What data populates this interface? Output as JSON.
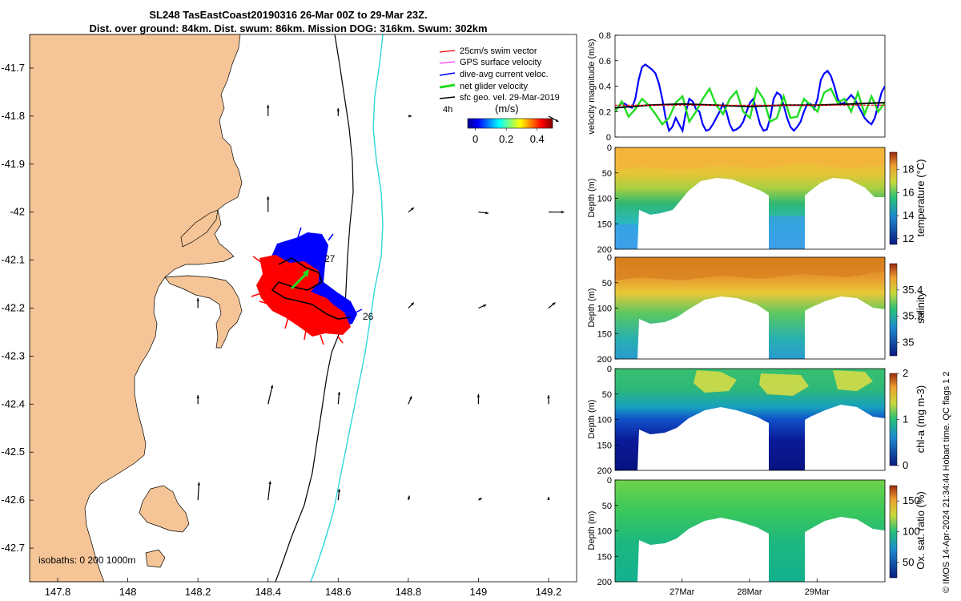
{
  "title": {
    "line1": "SL248 TasEastCoast20190316 26-Mar 00Z to 29-Mar 23Z.",
    "line2": "Dist. over ground: 84km. Dist. swum: 86km. Mission DOG: 316km. Swum: 302km"
  },
  "credit": "© IMOS 14-Apr-2024 21:34:44 Hobart time. QC flags 1  2",
  "colors": {
    "land": "#f6c597",
    "shelf_isobath": "#000000",
    "deep_isobath": "#2fd8dc",
    "glider_track": "#000000",
    "dive_avg": "#0000ff",
    "swim": "#ff0000",
    "net": "#22dd22",
    "gps": "#ff33ff"
  },
  "chart_data": [
    {
      "id": "map",
      "type": "map",
      "xlim": [
        147.72,
        149.28
      ],
      "ylim": [
        -42.77,
        -41.63
      ],
      "xticks": [
        "147.8",
        "148",
        "148.2",
        "148.4",
        "148.6",
        "148.8",
        "149",
        "149.2"
      ],
      "xtick_values": [
        147.8,
        148.0,
        148.2,
        148.4,
        148.6,
        148.8,
        149.0,
        149.2
      ],
      "yticks": [
        "-41.7",
        "-41.8",
        "-41.9",
        "-42",
        "-42.1",
        "-42.2",
        "-42.3",
        "-42.4",
        "-42.5",
        "-42.6",
        "-42.7"
      ],
      "ytick_values": [
        -41.7,
        -41.8,
        -41.9,
        -42.0,
        -42.1,
        -42.2,
        -42.3,
        -42.4,
        -42.5,
        -42.6,
        -42.7
      ],
      "legend": [
        {
          "label": "25cm/s swim vector",
          "color": "#ff0000"
        },
        {
          "label": "GPS surface velocity",
          "color": "#ff33ff"
        },
        {
          "label": "dive-avg current veloc.",
          "color": "#0000ff"
        },
        {
          "label": "net glider velocity",
          "color": "#22dd22"
        },
        {
          "label": "sfc geo. vel. 29-Mar-2019",
          "color": "#000000"
        }
      ],
      "time_label": "4h",
      "colorbar": {
        "label": "(m/s)",
        "ticks": [
          "0",
          "0.2",
          "0.4"
        ],
        "tick_values": [
          0,
          0.2,
          0.4
        ],
        "range": [
          -0.05,
          0.5
        ]
      },
      "isobath_label": "isobaths: 0   200  1000m",
      "track_labels": [
        "27",
        "26"
      ],
      "geo_vectors": [
        {
          "lon": 148.4,
          "lat": -41.8,
          "u": 0.0,
          "v": 1.0
        },
        {
          "lon": 148.6,
          "lat": -41.8,
          "u": 0.0,
          "v": 0.7
        },
        {
          "lon": 148.8,
          "lat": -41.8,
          "u": 0.3,
          "v": 0.0
        },
        {
          "lon": 149.2,
          "lat": -41.8,
          "u": 0.9,
          "v": -0.5
        },
        {
          "lon": 148.4,
          "lat": -42.0,
          "u": 0.0,
          "v": 1.4
        },
        {
          "lon": 148.8,
          "lat": -42.0,
          "u": 0.5,
          "v": 0.4
        },
        {
          "lon": 149.0,
          "lat": -42.0,
          "u": 0.9,
          "v": -0.1
        },
        {
          "lon": 149.2,
          "lat": -42.0,
          "u": 1.4,
          "v": 0.0
        },
        {
          "lon": 148.2,
          "lat": -42.2,
          "u": 0.0,
          "v": 0.9
        },
        {
          "lon": 148.8,
          "lat": -42.2,
          "u": 0.5,
          "v": 0.5
        },
        {
          "lon": 149.0,
          "lat": -42.2,
          "u": 0.7,
          "v": 0.3
        },
        {
          "lon": 149.2,
          "lat": -42.2,
          "u": 0.6,
          "v": 0.5
        },
        {
          "lon": 148.2,
          "lat": -42.4,
          "u": 0.0,
          "v": 0.8
        },
        {
          "lon": 148.4,
          "lat": -42.4,
          "u": 0.4,
          "v": 1.7
        },
        {
          "lon": 148.6,
          "lat": -42.4,
          "u": 0.1,
          "v": 1.1
        },
        {
          "lon": 148.8,
          "lat": -42.4,
          "u": 0.3,
          "v": 0.7
        },
        {
          "lon": 149.0,
          "lat": -42.4,
          "u": 0.0,
          "v": 0.9
        },
        {
          "lon": 149.2,
          "lat": -42.4,
          "u": 0.0,
          "v": 0.8
        },
        {
          "lon": 148.2,
          "lat": -42.6,
          "u": 0.1,
          "v": 1.6
        },
        {
          "lon": 148.4,
          "lat": -42.6,
          "u": 0.2,
          "v": 1.7
        },
        {
          "lon": 148.6,
          "lat": -42.6,
          "u": 0.1,
          "v": 1.0
        },
        {
          "lon": 148.8,
          "lat": -42.6,
          "u": 0.1,
          "v": 0.4
        },
        {
          "lon": 149.0,
          "lat": -42.6,
          "u": 0.3,
          "v": 0.2
        },
        {
          "lon": 149.2,
          "lat": -42.6,
          "u": 0.0,
          "v": 0.3
        }
      ]
    },
    {
      "id": "velocity",
      "type": "line",
      "ylabel": "velocity magnitude (m/s)",
      "ylim": [
        0,
        0.8
      ],
      "yticks": [
        "0",
        "0.2",
        "0.4",
        "0.6",
        "0.8"
      ],
      "ytick_values": [
        0,
        0.2,
        0.4,
        0.6,
        0.8
      ],
      "xlim": [
        0,
        4
      ],
      "series": [
        {
          "name": "dive-avg current veloc.",
          "color": "#0000ff",
          "x": [
            0,
            0.05,
            0.1,
            0.15,
            0.2,
            0.25,
            0.3,
            0.35,
            0.4,
            0.45,
            0.5,
            0.55,
            0.6,
            0.65,
            0.7,
            0.75,
            0.8,
            0.85,
            0.9,
            0.95,
            1.0,
            1.05,
            1.1,
            1.15,
            1.2,
            1.25,
            1.3,
            1.35,
            1.4,
            1.45,
            1.5,
            1.55,
            1.6,
            1.65,
            1.7,
            1.75,
            1.8,
            1.85,
            1.9,
            1.95,
            2.0,
            2.05,
            2.1,
            2.15,
            2.2,
            2.25,
            2.3,
            2.35,
            2.4,
            2.45,
            2.5,
            2.55,
            2.6,
            2.65,
            2.7,
            2.75,
            2.8,
            2.85,
            2.9,
            2.95,
            3.0,
            3.05,
            3.1,
            3.15,
            3.2,
            3.25,
            3.3,
            3.35,
            3.4,
            3.45,
            3.5,
            3.55,
            3.6,
            3.65,
            3.7,
            3.75,
            3.8,
            3.85,
            3.9,
            3.95,
            4.0
          ],
          "values": [
            0.2,
            0.24,
            0.27,
            0.26,
            0.24,
            0.23,
            0.3,
            0.45,
            0.55,
            0.57,
            0.55,
            0.53,
            0.5,
            0.42,
            0.3,
            0.15,
            0.05,
            0.08,
            0.15,
            0.1,
            0.05,
            0.2,
            0.3,
            0.28,
            0.22,
            0.2,
            0.1,
            0.05,
            0.06,
            0.1,
            0.15,
            0.2,
            0.26,
            0.2,
            0.1,
            0.05,
            0.06,
            0.08,
            0.12,
            0.2,
            0.27,
            0.3,
            0.2,
            0.1,
            0.05,
            0.06,
            0.15,
            0.3,
            0.35,
            0.33,
            0.25,
            0.15,
            0.08,
            0.05,
            0.08,
            0.12,
            0.2,
            0.26,
            0.26,
            0.22,
            0.3,
            0.45,
            0.5,
            0.52,
            0.48,
            0.4,
            0.3,
            0.26,
            0.27,
            0.3,
            0.33,
            0.3,
            0.25,
            0.2,
            0.15,
            0.12,
            0.1,
            0.15,
            0.25,
            0.35,
            0.4
          ]
        },
        {
          "name": "net glider velocity",
          "color": "#22dd22",
          "x": [
            0,
            0.1,
            0.2,
            0.3,
            0.4,
            0.5,
            0.6,
            0.7,
            0.8,
            0.9,
            1.0,
            1.1,
            1.2,
            1.3,
            1.4,
            1.5,
            1.6,
            1.7,
            1.8,
            1.9,
            2.0,
            2.1,
            2.2,
            2.3,
            2.4,
            2.5,
            2.6,
            2.7,
            2.8,
            2.9,
            3.0,
            3.1,
            3.2,
            3.3,
            3.4,
            3.5,
            3.6,
            3.7,
            3.8,
            3.9,
            4.0
          ],
          "values": [
            0.2,
            0.28,
            0.16,
            0.22,
            0.3,
            0.25,
            0.18,
            0.1,
            0.15,
            0.27,
            0.32,
            0.12,
            0.2,
            0.3,
            0.38,
            0.25,
            0.18,
            0.3,
            0.36,
            0.2,
            0.15,
            0.38,
            0.3,
            0.12,
            0.15,
            0.32,
            0.15,
            0.16,
            0.3,
            0.25,
            0.2,
            0.35,
            0.38,
            0.27,
            0.3,
            0.2,
            0.35,
            0.18,
            0.32,
            0.2,
            0.27
          ]
        },
        {
          "name": "sfc geo. vel.",
          "color": "#000000",
          "x": [
            0,
            0.5,
            1.0,
            1.5,
            2.0,
            2.5,
            3.0,
            3.5,
            4.0
          ],
          "values": [
            0.23,
            0.25,
            0.26,
            0.25,
            0.24,
            0.25,
            0.25,
            0.26,
            0.27
          ]
        },
        {
          "name": "swim",
          "color": "#ff0000",
          "x": [
            0,
            0.5,
            1.0,
            1.5,
            2.0,
            2.5,
            3.0,
            3.5,
            4.0
          ],
          "values": [
            0.25,
            0.25,
            0.25,
            0.25,
            0.25,
            0.25,
            0.25,
            0.25,
            0.25
          ]
        }
      ]
    },
    {
      "id": "temperature",
      "type": "heatmap",
      "ylabel": "Depth (m)",
      "clabel": "temperature (°C)",
      "clim": [
        11.5,
        19.5
      ],
      "cticks": [
        "12",
        "14",
        "16",
        "18"
      ],
      "ctick_values": [
        12,
        14,
        16,
        18
      ],
      "dticks": [
        "0",
        "50",
        "100",
        "150",
        "200"
      ],
      "dtick_values": [
        0,
        50,
        100,
        150,
        200
      ]
    },
    {
      "id": "salinity",
      "type": "heatmap",
      "ylabel": "Depth (m)",
      "clabel": "salinity",
      "clim": [
        34.9,
        35.6
      ],
      "cticks": [
        "35",
        "35.2",
        "35.4"
      ],
      "ctick_values": [
        35.0,
        35.2,
        35.4
      ],
      "dticks": [
        "0",
        "50",
        "100",
        "150",
        "200"
      ],
      "dtick_values": [
        0,
        50,
        100,
        150,
        200
      ]
    },
    {
      "id": "chla",
      "type": "heatmap",
      "ylabel": "Depth (m)",
      "clabel": "chl-a (mg m-3)",
      "clim": [
        0,
        2
      ],
      "cticks": [
        "0",
        "1",
        "2"
      ],
      "ctick_values": [
        0,
        1,
        2
      ],
      "dticks": [
        "0",
        "50",
        "100",
        "150",
        "200"
      ],
      "dtick_values": [
        0,
        50,
        100,
        150,
        200
      ]
    },
    {
      "id": "oxygen",
      "type": "heatmap",
      "ylabel": "Depth (m)",
      "clabel": "Ox. sat. ratio (%)",
      "clim": [
        25,
        175
      ],
      "cticks": [
        "50",
        "100",
        "150"
      ],
      "ctick_values": [
        50,
        100,
        150
      ],
      "dticks": [
        "0",
        "50",
        "100",
        "150",
        "200"
      ],
      "dtick_values": [
        0,
        50,
        100,
        150,
        200
      ],
      "xticks": [
        "27Mar",
        "28Mar",
        "29Mar"
      ],
      "xtick_values": [
        1,
        2,
        3
      ]
    }
  ]
}
